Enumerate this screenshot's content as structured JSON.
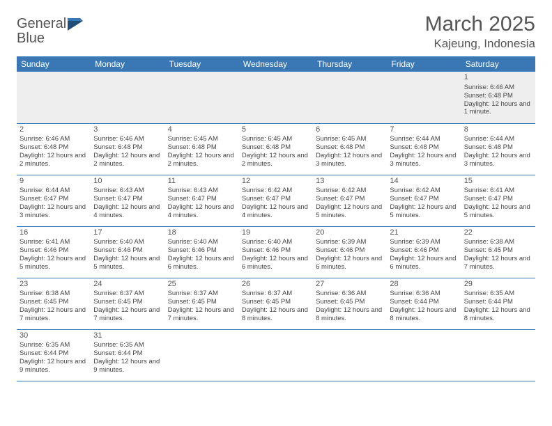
{
  "logo": {
    "part1": "General",
    "part2": "Blue"
  },
  "title": "March 2025",
  "location": "Kajeung, Indonesia",
  "colors": {
    "header_bg": "#3a78b5",
    "header_text": "#ffffff",
    "border": "#3a78b5",
    "empty_bg": "#eeeeee",
    "text": "#444444",
    "title_text": "#555555"
  },
  "weekdays": [
    "Sunday",
    "Monday",
    "Tuesday",
    "Wednesday",
    "Thursday",
    "Friday",
    "Saturday"
  ],
  "weeks": [
    [
      null,
      null,
      null,
      null,
      null,
      null,
      {
        "n": "1",
        "sr": "Sunrise: 6:46 AM",
        "ss": "Sunset: 6:48 PM",
        "dl": "Daylight: 12 hours and 1 minute."
      }
    ],
    [
      {
        "n": "2",
        "sr": "Sunrise: 6:46 AM",
        "ss": "Sunset: 6:48 PM",
        "dl": "Daylight: 12 hours and 2 minutes."
      },
      {
        "n": "3",
        "sr": "Sunrise: 6:46 AM",
        "ss": "Sunset: 6:48 PM",
        "dl": "Daylight: 12 hours and 2 minutes."
      },
      {
        "n": "4",
        "sr": "Sunrise: 6:45 AM",
        "ss": "Sunset: 6:48 PM",
        "dl": "Daylight: 12 hours and 2 minutes."
      },
      {
        "n": "5",
        "sr": "Sunrise: 6:45 AM",
        "ss": "Sunset: 6:48 PM",
        "dl": "Daylight: 12 hours and 2 minutes."
      },
      {
        "n": "6",
        "sr": "Sunrise: 6:45 AM",
        "ss": "Sunset: 6:48 PM",
        "dl": "Daylight: 12 hours and 3 minutes."
      },
      {
        "n": "7",
        "sr": "Sunrise: 6:44 AM",
        "ss": "Sunset: 6:48 PM",
        "dl": "Daylight: 12 hours and 3 minutes."
      },
      {
        "n": "8",
        "sr": "Sunrise: 6:44 AM",
        "ss": "Sunset: 6:48 PM",
        "dl": "Daylight: 12 hours and 3 minutes."
      }
    ],
    [
      {
        "n": "9",
        "sr": "Sunrise: 6:44 AM",
        "ss": "Sunset: 6:47 PM",
        "dl": "Daylight: 12 hours and 3 minutes."
      },
      {
        "n": "10",
        "sr": "Sunrise: 6:43 AM",
        "ss": "Sunset: 6:47 PM",
        "dl": "Daylight: 12 hours and 4 minutes."
      },
      {
        "n": "11",
        "sr": "Sunrise: 6:43 AM",
        "ss": "Sunset: 6:47 PM",
        "dl": "Daylight: 12 hours and 4 minutes."
      },
      {
        "n": "12",
        "sr": "Sunrise: 6:42 AM",
        "ss": "Sunset: 6:47 PM",
        "dl": "Daylight: 12 hours and 4 minutes."
      },
      {
        "n": "13",
        "sr": "Sunrise: 6:42 AM",
        "ss": "Sunset: 6:47 PM",
        "dl": "Daylight: 12 hours and 5 minutes."
      },
      {
        "n": "14",
        "sr": "Sunrise: 6:42 AM",
        "ss": "Sunset: 6:47 PM",
        "dl": "Daylight: 12 hours and 5 minutes."
      },
      {
        "n": "15",
        "sr": "Sunrise: 6:41 AM",
        "ss": "Sunset: 6:47 PM",
        "dl": "Daylight: 12 hours and 5 minutes."
      }
    ],
    [
      {
        "n": "16",
        "sr": "Sunrise: 6:41 AM",
        "ss": "Sunset: 6:46 PM",
        "dl": "Daylight: 12 hours and 5 minutes."
      },
      {
        "n": "17",
        "sr": "Sunrise: 6:40 AM",
        "ss": "Sunset: 6:46 PM",
        "dl": "Daylight: 12 hours and 5 minutes."
      },
      {
        "n": "18",
        "sr": "Sunrise: 6:40 AM",
        "ss": "Sunset: 6:46 PM",
        "dl": "Daylight: 12 hours and 6 minutes."
      },
      {
        "n": "19",
        "sr": "Sunrise: 6:40 AM",
        "ss": "Sunset: 6:46 PM",
        "dl": "Daylight: 12 hours and 6 minutes."
      },
      {
        "n": "20",
        "sr": "Sunrise: 6:39 AM",
        "ss": "Sunset: 6:46 PM",
        "dl": "Daylight: 12 hours and 6 minutes."
      },
      {
        "n": "21",
        "sr": "Sunrise: 6:39 AM",
        "ss": "Sunset: 6:46 PM",
        "dl": "Daylight: 12 hours and 6 minutes."
      },
      {
        "n": "22",
        "sr": "Sunrise: 6:38 AM",
        "ss": "Sunset: 6:45 PM",
        "dl": "Daylight: 12 hours and 7 minutes."
      }
    ],
    [
      {
        "n": "23",
        "sr": "Sunrise: 6:38 AM",
        "ss": "Sunset: 6:45 PM",
        "dl": "Daylight: 12 hours and 7 minutes."
      },
      {
        "n": "24",
        "sr": "Sunrise: 6:37 AM",
        "ss": "Sunset: 6:45 PM",
        "dl": "Daylight: 12 hours and 7 minutes."
      },
      {
        "n": "25",
        "sr": "Sunrise: 6:37 AM",
        "ss": "Sunset: 6:45 PM",
        "dl": "Daylight: 12 hours and 7 minutes."
      },
      {
        "n": "26",
        "sr": "Sunrise: 6:37 AM",
        "ss": "Sunset: 6:45 PM",
        "dl": "Daylight: 12 hours and 8 minutes."
      },
      {
        "n": "27",
        "sr": "Sunrise: 6:36 AM",
        "ss": "Sunset: 6:45 PM",
        "dl": "Daylight: 12 hours and 8 minutes."
      },
      {
        "n": "28",
        "sr": "Sunrise: 6:36 AM",
        "ss": "Sunset: 6:44 PM",
        "dl": "Daylight: 12 hours and 8 minutes."
      },
      {
        "n": "29",
        "sr": "Sunrise: 6:35 AM",
        "ss": "Sunset: 6:44 PM",
        "dl": "Daylight: 12 hours and 8 minutes."
      }
    ],
    [
      {
        "n": "30",
        "sr": "Sunrise: 6:35 AM",
        "ss": "Sunset: 6:44 PM",
        "dl": "Daylight: 12 hours and 9 minutes."
      },
      {
        "n": "31",
        "sr": "Sunrise: 6:35 AM",
        "ss": "Sunset: 6:44 PM",
        "dl": "Daylight: 12 hours and 9 minutes."
      },
      null,
      null,
      null,
      null,
      null
    ]
  ]
}
